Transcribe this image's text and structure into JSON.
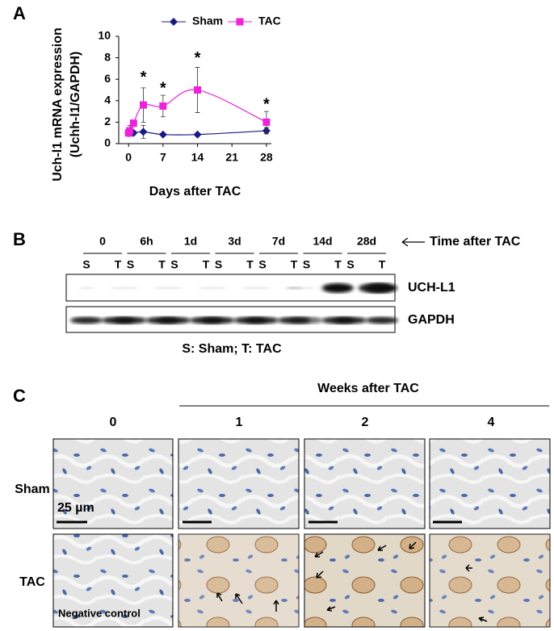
{
  "panel_labels": [
    "A",
    "B",
    "C"
  ],
  "chart_data": {
    "type": "line",
    "ylabel": [
      "Uch-l1 mRNA expression",
      "(Uchh-l1/GAPDH)"
    ],
    "xlabel": "Days after TAC",
    "x": [
      0,
      0.25,
      1,
      3,
      7,
      14,
      28
    ],
    "series": [
      {
        "name": "Sham",
        "color": "#1a1a80",
        "marker": "diamond",
        "values": [
          1.0,
          1.0,
          1.0,
          1.1,
          0.85,
          0.85,
          1.2
        ],
        "errors": [
          0.1,
          0.1,
          0.2,
          0.6,
          0.1,
          0.1,
          0.3
        ]
      },
      {
        "name": "TAC",
        "color": "#ee22dd",
        "marker": "square",
        "values": [
          1.0,
          1.2,
          1.9,
          3.6,
          3.5,
          5.0,
          2.0
        ],
        "errors": [
          0.3,
          0.5,
          0.3,
          1.6,
          1.0,
          2.1,
          1.0
        ]
      }
    ],
    "annotations": [
      {
        "x": 3,
        "y": 6.4,
        "text": "*"
      },
      {
        "x": 7,
        "y": 5.4,
        "text": "*"
      },
      {
        "x": 14,
        "y": 8.2,
        "text": "*"
      },
      {
        "x": 28,
        "y": 3.9,
        "text": "*"
      }
    ],
    "xlim": [
      -2,
      29
    ],
    "xticks": [
      0,
      7,
      14,
      21,
      28
    ],
    "ylim": [
      0,
      10
    ],
    "yticks": [
      0,
      2,
      4,
      6,
      8,
      10
    ],
    "legend": "top"
  },
  "blot": {
    "time_label": "Time after TAC",
    "lanes": [
      {
        "time": "0",
        "labels": [
          "S",
          "T"
        ]
      },
      {
        "time": "6h",
        "labels": [
          "S",
          "T"
        ]
      },
      {
        "time": "1d",
        "labels": [
          "S",
          "T"
        ]
      },
      {
        "time": "3d",
        "labels": [
          "S",
          "T"
        ]
      },
      {
        "time": "7d",
        "labels": [
          "S",
          "T"
        ]
      },
      {
        "time": "14d",
        "labels": [
          "S",
          "T"
        ]
      },
      {
        "time": "28d",
        "labels": [
          "S",
          "T"
        ]
      }
    ],
    "bands": [
      "UCH-L1",
      "GAPDH"
    ],
    "caption": "S: Sham; T: TAC"
  },
  "histology": {
    "title": "Weeks after TAC",
    "columns": [
      "0",
      "1",
      "2",
      "4"
    ],
    "rows": [
      "Sham",
      "TAC"
    ],
    "scale_bar": "25 µm",
    "note": "Negative control"
  }
}
